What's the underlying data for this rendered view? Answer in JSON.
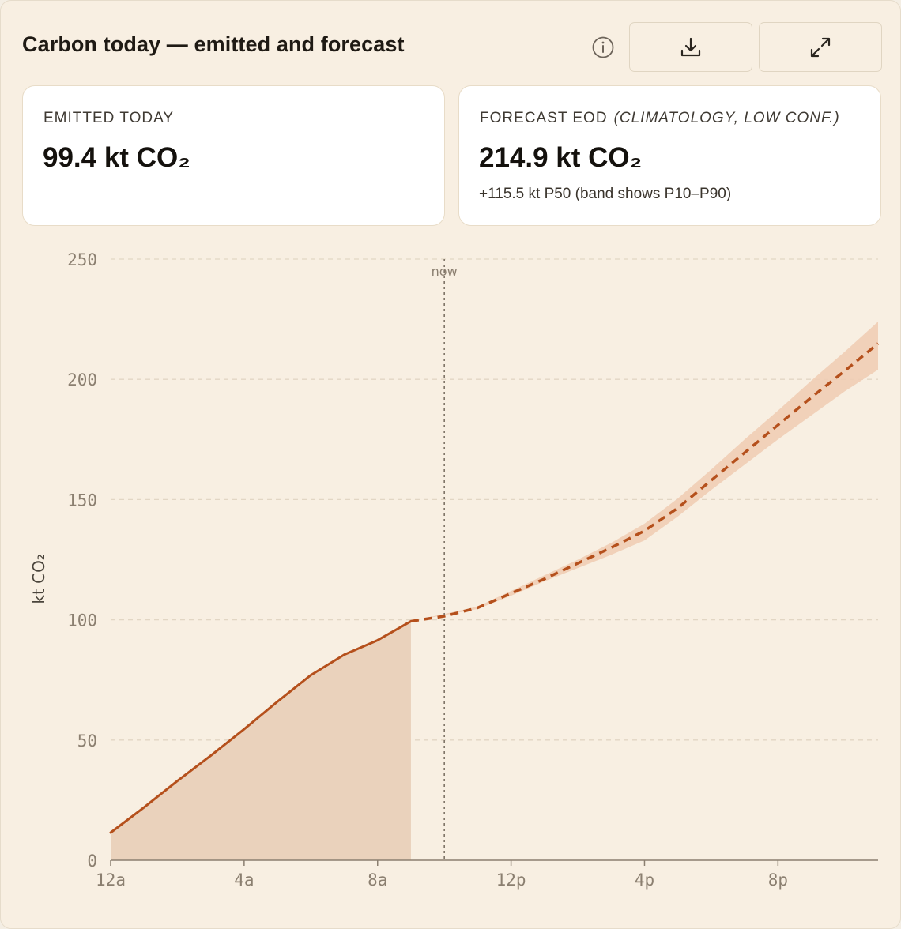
{
  "header": {
    "title": "Carbon today — emitted and forecast",
    "icons": {
      "info": "info-icon",
      "download": "download-icon",
      "expand": "expand-icon"
    }
  },
  "kpis": {
    "emitted": {
      "label": "EMITTED TODAY",
      "value": "99.4 kt CO₂"
    },
    "forecast": {
      "label": "FORECAST EOD",
      "note": "(CLIMATOLOGY, LOW CONF.)",
      "value": "214.9 kt CO₂",
      "sub": "+115.5 kt P50 (band shows P10–P90)"
    }
  },
  "colors": {
    "accent": "#b5501c",
    "area_fill": "#ead2bc",
    "band_fill": "#efcdb5",
    "grid": "#e2d6c4",
    "axis": "#8b7f70"
  },
  "chart_data": {
    "type": "area",
    "xlabel": "",
    "ylabel": "kt CO₂",
    "x_unit": "hour",
    "xlim": [
      0,
      23
    ],
    "ylim": [
      0,
      250
    ],
    "y_ticks": [
      0,
      50,
      100,
      150,
      200,
      250
    ],
    "x_ticks": [
      {
        "x": 0,
        "label": "12a"
      },
      {
        "x": 4,
        "label": "4a"
      },
      {
        "x": 8,
        "label": "8a"
      },
      {
        "x": 12,
        "label": "12p"
      },
      {
        "x": 16,
        "label": "4p"
      },
      {
        "x": 20,
        "label": "8p"
      }
    ],
    "grid": true,
    "now": {
      "x": 10,
      "label": "now"
    },
    "series": [
      {
        "role": "emitted",
        "style": "solid-area",
        "x": [
          0,
          1,
          2,
          3,
          4,
          5,
          6,
          7,
          8,
          9
        ],
        "y": [
          11.5,
          22,
          33,
          43.5,
          54.5,
          66,
          77,
          85.5,
          91.5,
          99.4
        ]
      },
      {
        "role": "forecast_p50",
        "style": "dashed",
        "x": [
          9,
          10,
          11,
          12,
          13,
          14,
          15,
          16,
          17,
          18,
          19,
          20,
          21,
          22,
          23
        ],
        "y": [
          99.4,
          101.5,
          105,
          111,
          117,
          123.5,
          130,
          137,
          146.5,
          158,
          169.5,
          181,
          192.5,
          203.5,
          214.9
        ]
      },
      {
        "role": "forecast_band",
        "style": "band",
        "x": [
          11,
          12,
          13,
          14,
          15,
          16,
          17,
          18,
          19,
          20,
          21,
          22,
          23
        ],
        "low": [
          104.5,
          110,
          116,
          121.5,
          127,
          133,
          143,
          154,
          164.5,
          175,
          185,
          195,
          204
        ],
        "high": [
          105.5,
          112,
          118.5,
          125,
          132,
          140,
          150.5,
          162.5,
          175,
          187,
          199.5,
          211.5,
          224
        ]
      }
    ]
  }
}
